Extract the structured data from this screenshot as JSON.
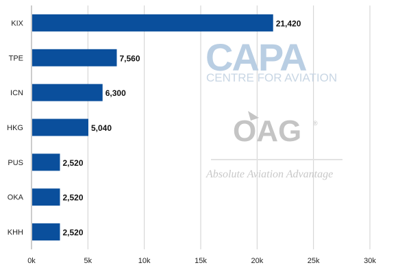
{
  "chart_data": {
    "type": "bar",
    "orientation": "horizontal",
    "categories": [
      "KIX",
      "TPE",
      "ICN",
      "HKG",
      "PUS",
      "OKA",
      "KHH"
    ],
    "values": [
      21420,
      7560,
      6300,
      5040,
      2520,
      2520,
      2520
    ],
    "value_labels": [
      "21,420",
      "7,560",
      "6,300",
      "5,040",
      "2,520",
      "2,520",
      "2,520"
    ],
    "xlim": [
      0,
      30000
    ],
    "x_ticks": [
      0,
      5000,
      10000,
      15000,
      20000,
      25000,
      30000
    ],
    "x_tick_labels": [
      "0k",
      "5k",
      "10k",
      "15k",
      "20k",
      "25k",
      "30k"
    ],
    "grid": true,
    "bar_color": "#0a4f9c",
    "title": "",
    "xlabel": "",
    "ylabel": ""
  },
  "watermark": {
    "capa_text": "CAPA",
    "capa_subtitle": "CENTRE FOR AVIATION",
    "oag_text": "OAG",
    "oag_mark": "®",
    "oag_tagline": "Absolute Aviation Advantage"
  }
}
